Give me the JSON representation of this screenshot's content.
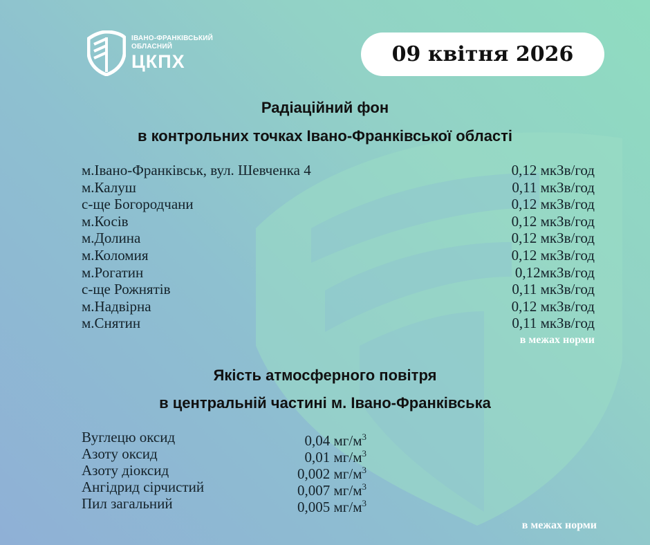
{
  "logo": {
    "line1": "ІВАНО-ФРАНКІВСЬКИЙ",
    "line2": "ОБЛАСНИЙ",
    "line3": "ЦКПХ"
  },
  "date": "09 квітня 2026",
  "radiation": {
    "title_line1": "Радіаційний фон",
    "title_line2": "в контрольних точках Івано-Франківської області",
    "rows": [
      {
        "place": "м.Івано-Франківськ, вул. Шевченка 4",
        "value": "0,12 мкЗв/год"
      },
      {
        "place": "м.Калуш",
        "value": "0,11 мкЗв/год"
      },
      {
        "place": "с-ще Богородчани",
        "value": "0,12 мкЗв/год"
      },
      {
        "place": "м.Косів",
        "value": "0,12 мкЗв/год"
      },
      {
        "place": "м.Долина",
        "value": "0,12 мкЗв/год"
      },
      {
        "place": "м.Коломия",
        "value": "0,12 мкЗв/год"
      },
      {
        "place": "м.Рогатин",
        "value": "0,12мкЗв/год"
      },
      {
        "place": "с-ще Рожнятів",
        "value": "0,11 мкЗв/год"
      },
      {
        "place": "м.Надвірна",
        "value": "0,12 мкЗв/год"
      },
      {
        "place": "м.Снятин",
        "value": "0,11 мкЗв/год"
      }
    ],
    "note": "в межах норми"
  },
  "air": {
    "title_line1": "Якість атмосферного повітря",
    "title_line2": "в центральній частині м. Івано-Франківська",
    "rows": [
      {
        "substance": "Вуглецю оксид",
        "value": "0,04 мг/м",
        "unit_sup": "3"
      },
      {
        "substance": "Азоту оксид",
        "value": "0,01 мг/м",
        "unit_sup": "3"
      },
      {
        "substance": "Азоту діоксид",
        "value": "0,002 мг/м",
        "unit_sup": "3"
      },
      {
        "substance": "Ангідрид сірчистий",
        "value": "0,007 мг/м",
        "unit_sup": "3"
      },
      {
        "substance": "Пил загальний",
        "value": "0,005 мг/м",
        "unit_sup": "3"
      }
    ],
    "note": "в межах норми"
  },
  "colors": {
    "mint": "#8fdcc0",
    "blue": "#8fb0d6",
    "watermark": "#97dcc0"
  }
}
